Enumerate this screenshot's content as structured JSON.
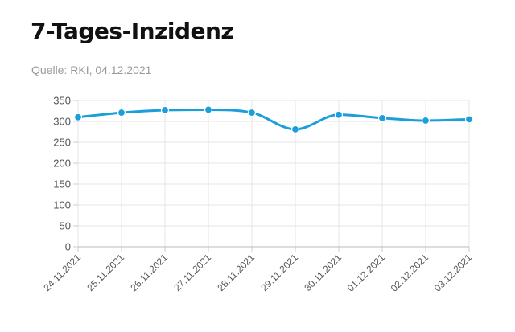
{
  "header": {
    "title": "7-Tages-Inzidenz",
    "source": "Quelle: RKI, 04.12.2021"
  },
  "chart_data": {
    "type": "line",
    "title": "7-Tages-Inzidenz",
    "xlabel": "",
    "ylabel": "",
    "x": [
      "24.11.2021",
      "25.11.2021",
      "26.11.2021",
      "27.11.2021",
      "28.11.2021",
      "29.11.2021",
      "30.11.2021",
      "01.12.2021",
      "02.12.2021",
      "03.12.2021"
    ],
    "series": [
      {
        "values": [
          310,
          321,
          327,
          328,
          321,
          281,
          316,
          308,
          302,
          305
        ],
        "color": "#1a9fda"
      }
    ],
    "ylim": [
      0,
      350
    ],
    "yticks": [
      0,
      50,
      100,
      150,
      200,
      250,
      300,
      350
    ],
    "grid": true,
    "legend": "none"
  }
}
